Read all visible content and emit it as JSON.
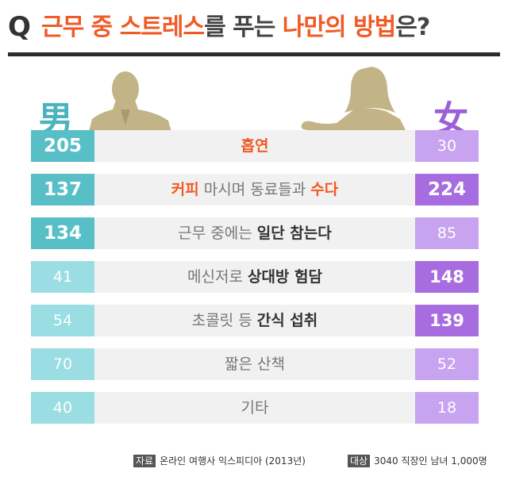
{
  "header": {
    "q_mark": "Q",
    "title_parts": [
      "근무 중 스트레스",
      "를 푸는 ",
      "나만의 방법",
      "은?"
    ]
  },
  "legend": {
    "male": "男",
    "female": "女"
  },
  "colors": {
    "accent_orange": "#f15a24",
    "male_dark": "#58bfc6",
    "male_light": "#9adde2",
    "female_dark": "#a76de0",
    "female_light": "#c8a3ef",
    "row_bg": "#f1f1f1",
    "silhouette": "#c2b487"
  },
  "rows": [
    {
      "male": "205",
      "female": "30",
      "label_parts": [
        {
          "text": "흡연",
          "style": "or"
        }
      ]
    },
    {
      "male": "137",
      "female": "224",
      "label_parts": [
        {
          "text": "커피",
          "style": "or"
        },
        {
          "text": " 마시며 동료들과 ",
          "style": "plain"
        },
        {
          "text": "수다",
          "style": "or"
        }
      ]
    },
    {
      "male": "134",
      "female": "85",
      "label_parts": [
        {
          "text": "근무 중에는 ",
          "style": "plain"
        },
        {
          "text": "일단 참는다",
          "style": "em"
        }
      ]
    },
    {
      "male": "41",
      "female": "148",
      "label_parts": [
        {
          "text": "메신저로 ",
          "style": "plain"
        },
        {
          "text": "상대방 험담",
          "style": "em"
        }
      ]
    },
    {
      "male": "54",
      "female": "139",
      "label_parts": [
        {
          "text": "초콜릿 등 ",
          "style": "plain"
        },
        {
          "text": "간식 섭취",
          "style": "em"
        }
      ]
    },
    {
      "male": "70",
      "female": "52",
      "label_parts": [
        {
          "text": "짧은 산책",
          "style": "plain"
        }
      ]
    },
    {
      "male": "40",
      "female": "18",
      "label_parts": [
        {
          "text": "기타",
          "style": "plain"
        }
      ]
    }
  ],
  "chart_data": {
    "type": "table",
    "categories": [
      "흡연",
      "커피 마시며 동료들과 수다",
      "근무 중에는 일단 참는다",
      "메신저로 상대방 험담",
      "초콜릿 등 간식 섭취",
      "짧은 산책",
      "기타"
    ],
    "series": [
      {
        "name": "男",
        "values": [
          205,
          137,
          134,
          41,
          54,
          70,
          40
        ]
      },
      {
        "name": "女",
        "values": [
          30,
          224,
          85,
          148,
          139,
          52,
          18
        ]
      }
    ],
    "title": "근무 중 스트레스를 푸는 나만의 방법은?"
  },
  "footer": {
    "source_tag": "자료",
    "source_text": "온라인 여행사 익스피디아 (2013년)",
    "target_tag": "대상",
    "target_text": "3040 직장인 남녀 1,000명"
  }
}
